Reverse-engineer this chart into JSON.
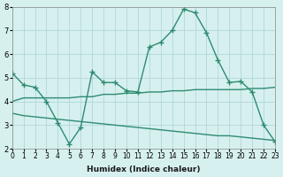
{
  "xlabel": "Humidex (Indice chaleur)",
  "x": [
    0,
    1,
    2,
    3,
    4,
    5,
    6,
    7,
    8,
    9,
    10,
    11,
    12,
    13,
    14,
    15,
    16,
    17,
    18,
    19,
    20,
    21,
    22,
    23
  ],
  "line1": [
    5.2,
    4.7,
    4.6,
    4.0,
    3.1,
    2.2,
    2.9,
    5.25,
    4.8,
    4.8,
    4.45,
    4.4,
    6.3,
    6.5,
    7.0,
    7.9,
    7.75,
    6.9,
    5.75,
    4.8,
    4.85,
    4.4,
    3.0,
    2.3
  ],
  "line2": [
    4.0,
    4.15,
    4.15,
    4.15,
    4.15,
    4.15,
    4.2,
    4.2,
    4.3,
    4.3,
    4.35,
    4.35,
    4.4,
    4.4,
    4.45,
    4.45,
    4.5,
    4.5,
    4.5,
    4.5,
    4.5,
    4.55,
    4.55,
    4.6
  ],
  "line3": [
    3.5,
    3.4,
    3.35,
    3.3,
    3.25,
    3.2,
    3.15,
    3.1,
    3.05,
    3.0,
    2.95,
    2.9,
    2.85,
    2.8,
    2.75,
    2.7,
    2.65,
    2.6,
    2.55,
    2.55,
    2.5,
    2.45,
    2.4,
    2.35
  ],
  "color": "#2e8b72",
  "bg_color": "#d6f0ef",
  "grid_color": "#b0d8d6",
  "ylim": [
    2,
    8
  ],
  "yticks": [
    2,
    3,
    4,
    5,
    6,
    7,
    8
  ],
  "xlim": [
    0,
    23
  ]
}
